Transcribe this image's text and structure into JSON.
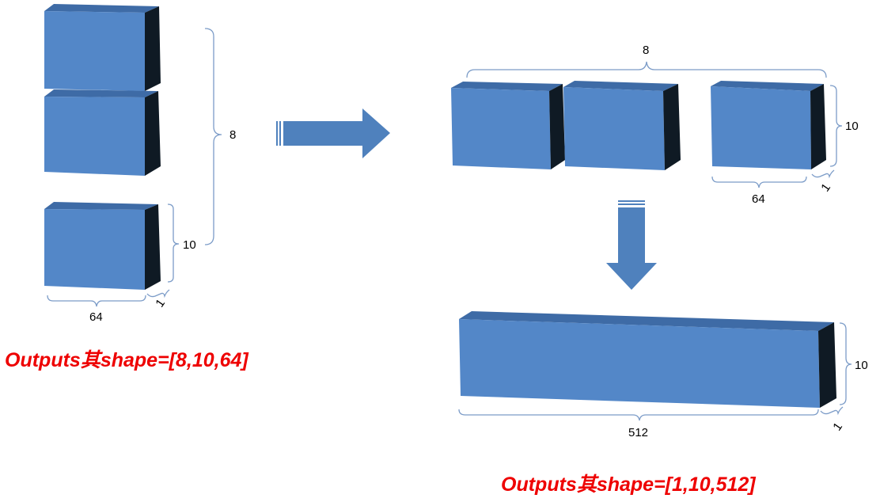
{
  "colors": {
    "block_front": "#5387C8",
    "block_top": "#3E6BA6",
    "block_side": "#0F1A24",
    "bracket": "#7C9CC8",
    "arrow": "#4F81BD",
    "caption": "#EE0000"
  },
  "left": {
    "stack_count_label": "8",
    "height_label": "10",
    "width_label": "64",
    "depth_label": "1",
    "caption": "Outputs其shape=[8,10,64]"
  },
  "right_top": {
    "count_label": "8",
    "height_label": "10",
    "width_label": "64",
    "depth_label": "1"
  },
  "right_bottom": {
    "height_label": "10",
    "width_label": "512",
    "depth_label": "1",
    "caption": "Outputs其shape=[1,10,512]"
  }
}
